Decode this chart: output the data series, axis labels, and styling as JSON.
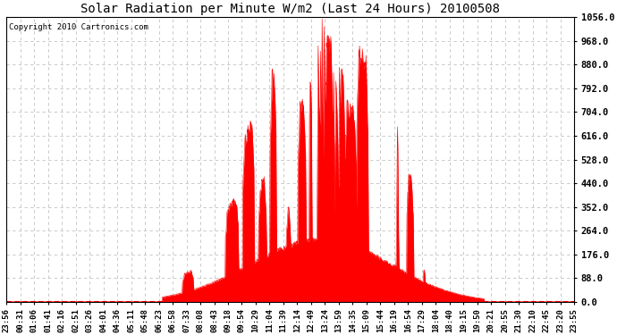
{
  "title": "Solar Radiation per Minute W/m2 (Last 24 Hours) 20100508",
  "copyright": "Copyright 2010 Cartronics.com",
  "bar_color": "#ff0000",
  "background_color": "#ffffff",
  "grid_color": "#c0c0c0",
  "baseline_color": "#ff0000",
  "ymin": 0.0,
  "ymax": 1056.0,
  "ytick_values": [
    0.0,
    88.0,
    176.0,
    264.0,
    352.0,
    440.0,
    528.0,
    616.0,
    704.0,
    792.0,
    880.0,
    968.0,
    1056.0
  ],
  "x_labels": [
    "23:56",
    "00:31",
    "01:06",
    "01:41",
    "02:16",
    "02:51",
    "03:26",
    "04:01",
    "04:36",
    "05:11",
    "05:48",
    "06:23",
    "06:58",
    "07:33",
    "08:08",
    "08:43",
    "09:18",
    "09:54",
    "10:29",
    "11:04",
    "11:39",
    "12:14",
    "12:49",
    "13:24",
    "13:59",
    "14:35",
    "15:09",
    "15:44",
    "16:19",
    "16:54",
    "17:29",
    "18:04",
    "18:40",
    "19:15",
    "19:50",
    "20:21",
    "20:55",
    "21:30",
    "22:10",
    "22:45",
    "23:20",
    "23:55"
  ],
  "num_points": 1440
}
